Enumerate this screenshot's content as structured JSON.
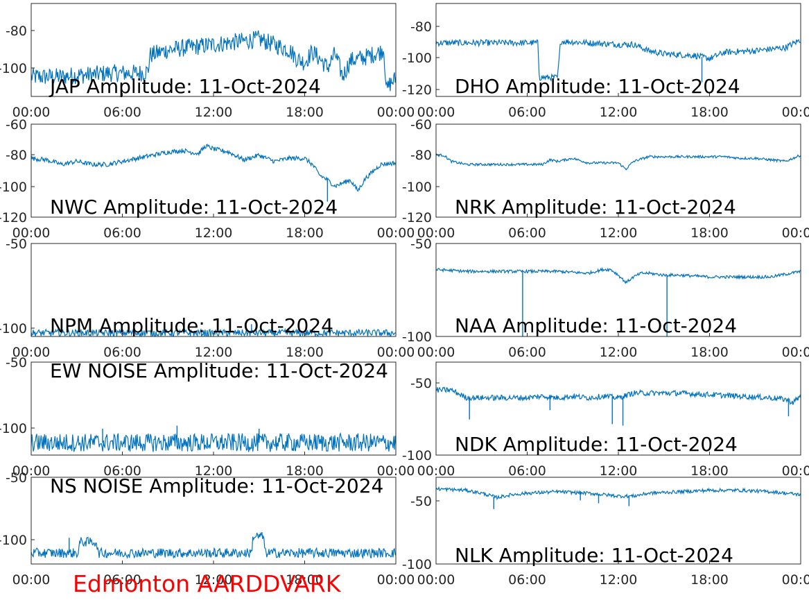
{
  "footer": {
    "text": "Edmonton AARDDVARK",
    "color": "#ff0000"
  },
  "colors": {
    "trace": "#0072bd",
    "axis": "#262626",
    "background": "#ffffff"
  },
  "chart_data": [
    {
      "type": "line",
      "station": "JAP",
      "title": "JAP Amplitude: 11-Oct-2024",
      "xticks": [
        "00:00",
        "06:00",
        "12:00",
        "18:00",
        "00:00"
      ],
      "ytick_labels": [
        "-80",
        "-100"
      ],
      "x_hours": [
        0,
        1,
        2,
        3,
        4,
        5,
        6,
        7,
        7.7,
        7.8,
        9,
        10,
        11,
        12,
        13,
        14,
        15,
        16,
        17,
        17.5,
        18,
        18.5,
        19,
        19.5,
        20,
        20.5,
        21,
        22,
        23,
        23.2,
        23.4,
        23.6,
        24
      ],
      "y": [
        -104,
        -104,
        -104,
        -103,
        -103,
        -102,
        -102,
        -102,
        -101,
        -92,
        -89,
        -88,
        -87,
        -86,
        -85,
        -84,
        -83,
        -86,
        -89,
        -94,
        -96,
        -90,
        -94,
        -99,
        -91,
        -104,
        -95,
        -93,
        -90,
        -88,
        -112,
        -108,
        -105
      ],
      "ylim": [
        -115,
        -63
      ],
      "noise": 5,
      "spikes": []
    },
    {
      "type": "line",
      "station": "DHO",
      "title": "DHO Amplitude: 11-Oct-2024",
      "xticks": [
        "00:00",
        "06:00",
        "12:00",
        "18:00",
        "00:00"
      ],
      "ytick_labels": [
        "-80",
        "-100",
        "-120"
      ],
      "x_hours": [
        0,
        3,
        6.7,
        6.8,
        8,
        8.2,
        10,
        12,
        13,
        14,
        15,
        17,
        18,
        19,
        21,
        23,
        24
      ],
      "y": [
        -90,
        -90,
        -90,
        -112,
        -112,
        -89,
        -90,
        -91,
        -91,
        -95,
        -97,
        -98,
        -100,
        -96,
        -95,
        -93,
        -88
      ],
      "ylim": [
        -124,
        -65
      ],
      "noise": 2,
      "spikes": [
        [
          17.5,
          -115
        ]
      ]
    },
    {
      "type": "line",
      "station": "NWC",
      "title": "NWC Amplitude: 11-Oct-2024",
      "xticks": [
        "00:00",
        "06:00",
        "12:00",
        "18:00",
        "00:00"
      ],
      "ytick_labels": [
        "-60",
        "-80",
        "-100",
        "-120"
      ],
      "x_hours": [
        0,
        1,
        2,
        3,
        4,
        5,
        6,
        7,
        8,
        9,
        10,
        11,
        11.5,
        12,
        13,
        14,
        15,
        16,
        17,
        18,
        18.5,
        19,
        19.5,
        20,
        21,
        21.5,
        22,
        23,
        24
      ],
      "y": [
        -82,
        -83,
        -86,
        -84,
        -86,
        -86,
        -84,
        -82,
        -80,
        -78,
        -77,
        -79,
        -74,
        -76,
        -78,
        -83,
        -80,
        -84,
        -82,
        -82,
        -86,
        -93,
        -96,
        -100,
        -96,
        -103,
        -95,
        -86,
        -85
      ],
      "ylim": [
        -120,
        -60
      ],
      "noise": 1.5,
      "spikes": [
        [
          19.5,
          -110
        ]
      ]
    },
    {
      "type": "line",
      "station": "NRK",
      "title": "NRK Amplitude: 11-Oct-2024",
      "xticks": [
        "00:00",
        "06:00",
        "12:00",
        "18:00",
        "00:00"
      ],
      "ytick_labels": [
        "-60",
        "-80",
        "-100",
        "-120"
      ],
      "x_hours": [
        0,
        0.5,
        1,
        2,
        3,
        4,
        5,
        6,
        7,
        7.5,
        8,
        9,
        10,
        11,
        12,
        12.5,
        13,
        14,
        15,
        16,
        17,
        18,
        19,
        20,
        21,
        22,
        23,
        24
      ],
      "y": [
        -80,
        -80,
        -84,
        -86,
        -86,
        -86,
        -86,
        -86,
        -86,
        -83,
        -84,
        -82,
        -85,
        -85,
        -85,
        -89,
        -84,
        -81,
        -81,
        -81,
        -81,
        -81,
        -81,
        -82,
        -82,
        -83,
        -84,
        -80
      ],
      "ylim": [
        -120,
        -60
      ],
      "noise": 0.8,
      "spikes": []
    },
    {
      "type": "line",
      "station": "NPM",
      "title": "NPM Amplitude: 11-Oct-2024",
      "xticks": [
        "00:00",
        "06:00",
        "12:00",
        "18:00",
        "00:00"
      ],
      "ytick_labels": [
        "-50",
        "-100"
      ],
      "x_hours": [
        0,
        24
      ],
      "y": [
        -101,
        -101
      ],
      "ylim": [
        -103,
        -50
      ],
      "noise": 2,
      "spikes": [
        [
          14.5,
          -96
        ]
      ]
    },
    {
      "type": "line",
      "station": "NAA",
      "title": "NAA Amplitude: 11-Oct-2024",
      "xticks": [
        "00:00",
        "06:00",
        "12:00",
        "18:00",
        "00:00"
      ],
      "ytick_labels": [
        "-50",
        "-100"
      ],
      "x_hours": [
        0,
        2,
        4,
        6,
        8,
        10,
        11,
        11.5,
        12,
        12.5,
        13,
        13.5,
        14,
        15,
        16,
        18,
        20,
        22,
        24
      ],
      "y": [
        -64,
        -65,
        -65,
        -65,
        -65,
        -66,
        -64,
        -64,
        -67,
        -71,
        -68,
        -66,
        -66,
        -67,
        -67,
        -68,
        -68,
        -68,
        -65
      ],
      "ylim": [
        -100,
        -50
      ],
      "noise": 0.8,
      "spikes": [
        [
          5.7,
          -100
        ],
        [
          15.2,
          -100
        ]
      ]
    },
    {
      "type": "line",
      "station": "EW NOISE",
      "title": "EW NOISE Amplitude: 11-Oct-2024",
      "xticks": [
        "00:00",
        "06:00",
        "12:00",
        "18:00",
        "00:00"
      ],
      "ytick_labels": [
        "-50",
        "-100"
      ],
      "x_hours": [
        0,
        24
      ],
      "y": [
        -102,
        -102
      ],
      "ylim": [
        -110,
        -50
      ],
      "noise": 6,
      "spikes": [
        [
          4.7,
          -93
        ],
        [
          9.6,
          -91
        ],
        [
          15,
          -93
        ]
      ]
    },
    {
      "type": "line",
      "station": "NDK",
      "title": "NDK Amplitude: 11-Oct-2024",
      "xticks": [
        "00:00",
        "06:00",
        "12:00",
        "18:00",
        "00:00"
      ],
      "ytick_labels": [
        "-50",
        "-100"
      ],
      "x_hours": [
        0,
        1,
        2,
        3,
        4,
        5,
        6,
        7,
        8,
        9,
        10,
        11,
        12,
        13,
        14,
        16,
        18,
        20,
        22,
        23,
        23.5,
        24
      ],
      "y": [
        -58,
        -58,
        -63,
        -63,
        -63,
        -63,
        -63,
        -62,
        -63,
        -62,
        -63,
        -62,
        -63,
        -60,
        -60,
        -60,
        -61,
        -62,
        -63,
        -64,
        -66,
        -62
      ],
      "ylim": [
        -100,
        -40
      ],
      "noise": 1.8,
      "spikes": [
        [
          2.2,
          -77
        ],
        [
          11.6,
          -80
        ],
        [
          12.3,
          -81
        ],
        [
          7.5,
          -71
        ],
        [
          23.2,
          -75
        ]
      ]
    },
    {
      "type": "line",
      "station": "NS NOISE",
      "title": "NS NOISE Amplitude: 11-Oct-2024",
      "xticks": [
        "00:00",
        "06:00",
        "12:00",
        "18:00",
        "00:00"
      ],
      "ytick_labels": [
        "-50",
        "-100"
      ],
      "x_hours": [
        0,
        3.1,
        3.2,
        4.3,
        4.4,
        14.5,
        14.6,
        15.3,
        15.4,
        24
      ],
      "y": [
        -105,
        -105,
        -97,
        -97,
        -105,
        -105,
        -93,
        -93,
        -105,
        -105
      ],
      "ylim": [
        -113,
        -50
      ],
      "noise": 3.5,
      "spikes": [
        [
          2.5,
          -94
        ]
      ]
    },
    {
      "type": "line",
      "station": "NLK",
      "title": "NLK Amplitude: 11-Oct-2024",
      "xticks": [
        "00:00",
        "06:00",
        "12:00",
        "18:00",
        "00:00"
      ],
      "ytick_labels": [
        "-50",
        "-100"
      ],
      "x_hours": [
        0,
        2,
        3,
        4,
        5,
        6,
        8,
        10,
        12,
        13,
        14,
        16,
        18,
        20,
        22,
        23,
        24
      ],
      "y": [
        -48,
        -49,
        -51,
        -54,
        -52,
        -51,
        -50,
        -51,
        -53,
        -53,
        -51,
        -50,
        -49,
        -49,
        -50,
        -51,
        -52
      ],
      "ylim": [
        -100,
        -40
      ],
      "noise": 1.2,
      "spikes": [
        [
          3.8,
          -62
        ],
        [
          10.7,
          -58
        ],
        [
          12.7,
          -60
        ],
        [
          9.5,
          -56
        ]
      ]
    }
  ]
}
